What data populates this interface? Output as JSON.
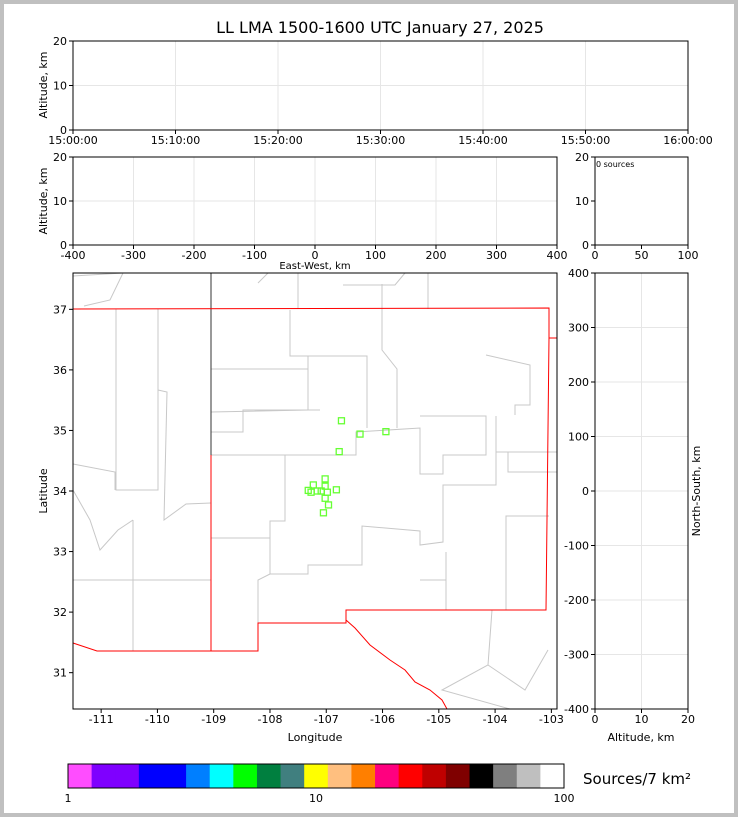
{
  "chart_data": [
    {
      "type": "scatter",
      "title": "LL LMA 1500-1600 UTC January 27, 2025",
      "ylabel": "Altitude, km",
      "ylim": [
        0,
        20
      ],
      "yticks": [
        "0",
        "10",
        "20"
      ],
      "xticks": [
        "15:00:00",
        "15:10:00",
        "15:20:00",
        "15:30:00",
        "15:40:00",
        "15:50:00",
        "16:00:00"
      ],
      "points": [],
      "grid": true
    },
    {
      "type": "scatter",
      "xlabel": "East-West, km",
      "ylabel": "Altitude, km",
      "xlim": [
        -400,
        400
      ],
      "ylim": [
        0,
        20
      ],
      "xticks": [
        "-400",
        "-300",
        "-200",
        "-100",
        "0",
        "100",
        "200",
        "300",
        "400"
      ],
      "yticks": [
        "0",
        "10",
        "20"
      ],
      "points": [],
      "grid": true
    },
    {
      "type": "histogram",
      "annotation": "0 sources",
      "xlim": [
        0,
        100
      ],
      "ylim": [
        0,
        20
      ],
      "xticks": [
        "0",
        "50",
        "100"
      ],
      "yticks": [
        "0",
        "10",
        "20"
      ]
    },
    {
      "type": "scatter",
      "xlabel": "Longitude",
      "ylabel": "Latitude",
      "xlim": [
        -111.5,
        -102.9
      ],
      "ylim": [
        30.4,
        37.6
      ],
      "xticks": [
        "-111",
        "-110",
        "-109",
        "-108",
        "-107",
        "-106",
        "-105",
        "-104",
        "-103"
      ],
      "yticks": [
        "31",
        "32",
        "33",
        "34",
        "35",
        "36",
        "37"
      ],
      "marker_color": "#66ff33",
      "points": [
        [
          -106.73,
          35.16
        ],
        [
          -106.4,
          34.94
        ],
        [
          -105.94,
          34.98
        ],
        [
          -106.77,
          34.65
        ],
        [
          -107.02,
          34.2
        ],
        [
          -107.23,
          34.1
        ],
        [
          -107.02,
          34.08
        ],
        [
          -107.32,
          34.01
        ],
        [
          -107.16,
          34.0
        ],
        [
          -107.09,
          34.0
        ],
        [
          -106.98,
          33.98
        ],
        [
          -106.82,
          34.02
        ],
        [
          -107.27,
          33.98
        ],
        [
          -107.02,
          33.88
        ],
        [
          -106.96,
          33.77
        ],
        [
          -107.05,
          33.64
        ]
      ]
    },
    {
      "type": "scatter",
      "xlabel": "Altitude, km",
      "ylabel": "North-South, km",
      "xlim": [
        0,
        20
      ],
      "ylim": [
        -400,
        400
      ],
      "xticks": [
        "0",
        "10",
        "20"
      ],
      "yticks": [
        "-400",
        "-300",
        "-200",
        "-100",
        "0",
        "100",
        "200",
        "300",
        "400"
      ],
      "points": [],
      "grid": true
    },
    {
      "type": "colorbar",
      "label": "Sources/7 km²",
      "scale": "log",
      "range": [
        1,
        100
      ],
      "ticks": [
        "1",
        "10",
        "100"
      ],
      "colors": [
        "#ff4dff",
        "#7f00ff",
        "#7f00ff",
        "#0000ff",
        "#0000ff",
        "#007fff",
        "#00ffff",
        "#00ff00",
        "#007f3f",
        "#407f7f",
        "#ffff00",
        "#ffbf7f",
        "#ff7f00",
        "#ff007f",
        "#ff0000",
        "#bf0000",
        "#7f0000",
        "#000000",
        "#7f7f7f",
        "#bfbfbf",
        "#ffffff"
      ]
    }
  ]
}
